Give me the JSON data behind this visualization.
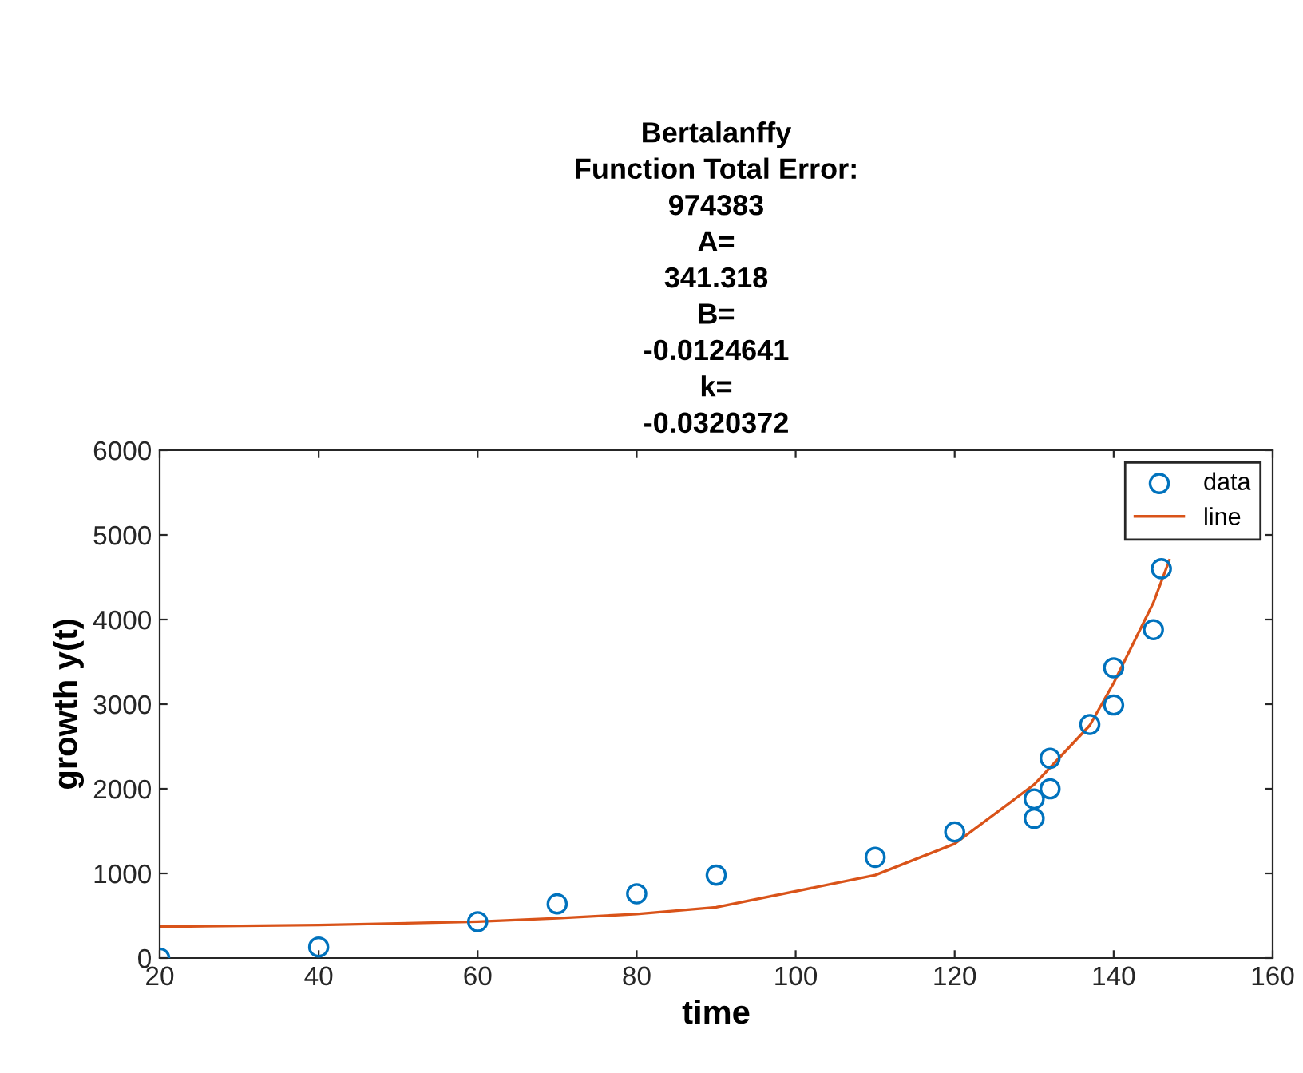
{
  "chart_data": {
    "type": "scatter",
    "title": "Bertalanffy\nFunction Total Error:\n974383\nA=\n341.318\nB=\n-0.0124641\nk=\n-0.0320372",
    "xlabel": "time",
    "ylabel": "growth y(t)",
    "xlim": [
      20,
      160
    ],
    "xticks": [
      20,
      40,
      60,
      80,
      100,
      120,
      140,
      160
    ],
    "ylim": [
      0,
      6000
    ],
    "yticks": [
      0,
      1000,
      2000,
      3000,
      4000,
      5000,
      6000
    ],
    "grid": false,
    "legend": "top right",
    "series": [
      {
        "name": "data",
        "marker": "circle",
        "color": "#0072bd",
        "x": [
          20,
          40,
          60,
          70,
          80,
          90,
          110,
          120,
          130,
          130,
          132,
          132,
          137,
          140,
          140,
          145,
          146
        ],
        "values": [
          0,
          130,
          430,
          640,
          760,
          980,
          1190,
          1490,
          1650,
          1880,
          2000,
          2360,
          2760,
          2990,
          3430,
          3880,
          4600
        ]
      },
      {
        "name": "line",
        "type": "line",
        "marker": "none",
        "line_style": "solid",
        "color": "#d95319",
        "x": [
          20,
          40,
          60,
          70,
          80,
          90,
          110,
          120,
          130,
          132,
          137,
          140,
          145,
          147
        ],
        "values": [
          370,
          390,
          430,
          470,
          520,
          600,
          980,
          1350,
          2050,
          2250,
          2750,
          3250,
          4200,
          4700
        ]
      }
    ]
  }
}
